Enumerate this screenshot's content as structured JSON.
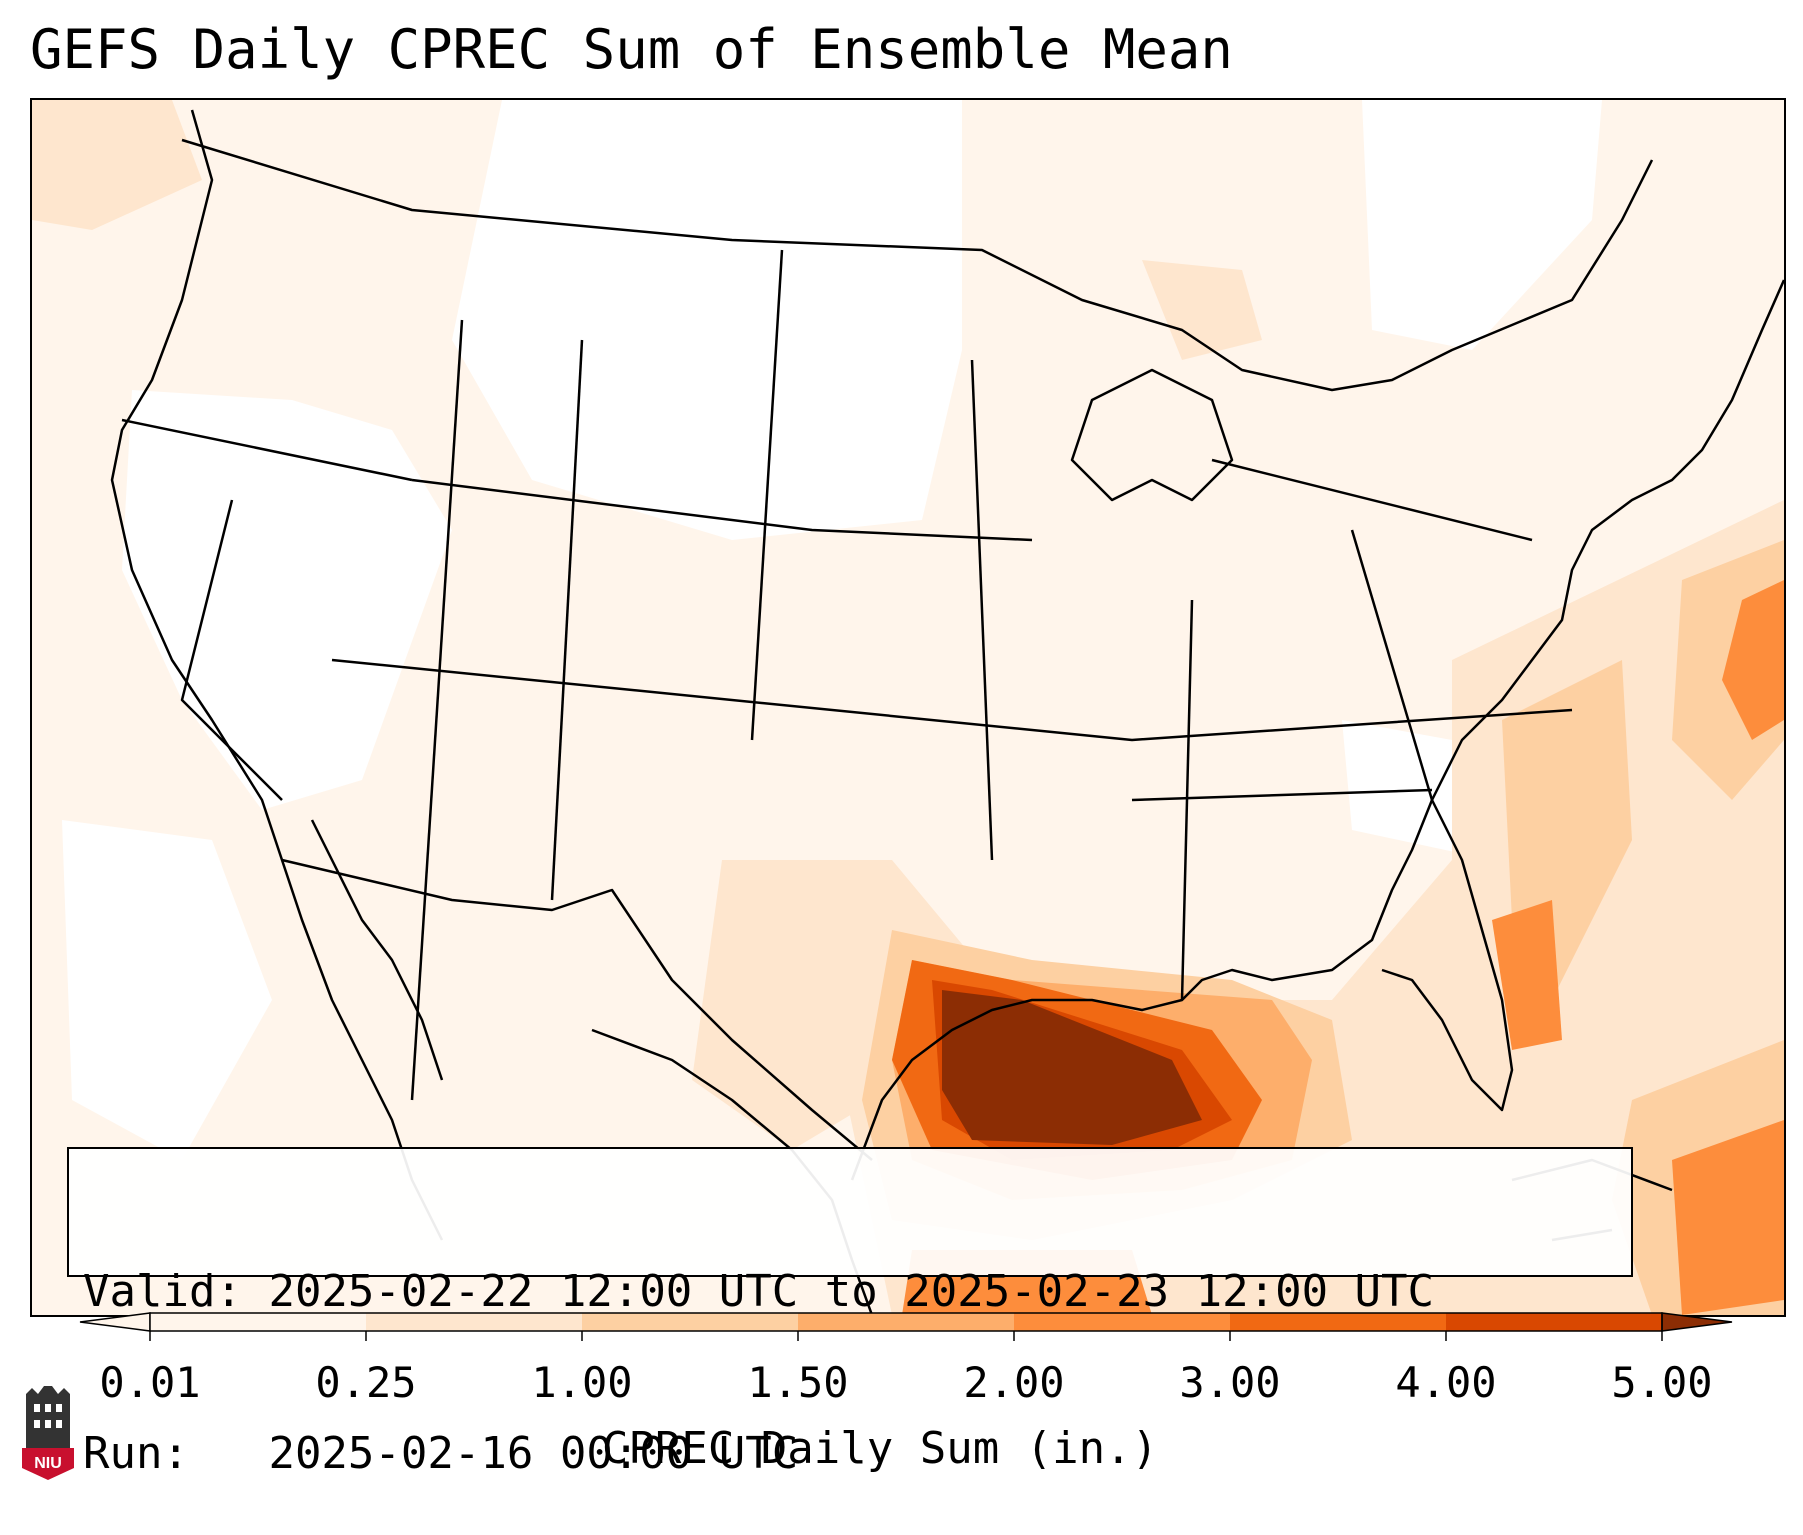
{
  "title": "GEFS Daily CPREC Sum of Ensemble Mean",
  "info": {
    "valid_label": "Valid:",
    "valid_value": "2025-02-22 12:00 UTC to 2025-02-23 12:00 UTC",
    "run_label": "Run:",
    "run_value": "2025-02-16 00:00 UTC"
  },
  "colorbar": {
    "label": "CPREC Daily Sum (in.)",
    "ticks": [
      "0.01",
      "0.25",
      "1.00",
      "1.50",
      "2.00",
      "3.00",
      "4.00",
      "5.00"
    ],
    "colors": [
      "#fff5eb",
      "#fee6ce",
      "#fdd0a2",
      "#fdae6b",
      "#fd8d3c",
      "#f16913",
      "#d94801",
      "#8c2d04"
    ],
    "extend": "both"
  },
  "map": {
    "region": "Continental United States",
    "variable": "Convective precipitation daily sum",
    "max_area": "Texas Gulf Coast and western Gulf of Mexico"
  },
  "logo": {
    "text": "NIU",
    "colors": {
      "shield": "#c8102e",
      "tower": "#333333"
    }
  }
}
